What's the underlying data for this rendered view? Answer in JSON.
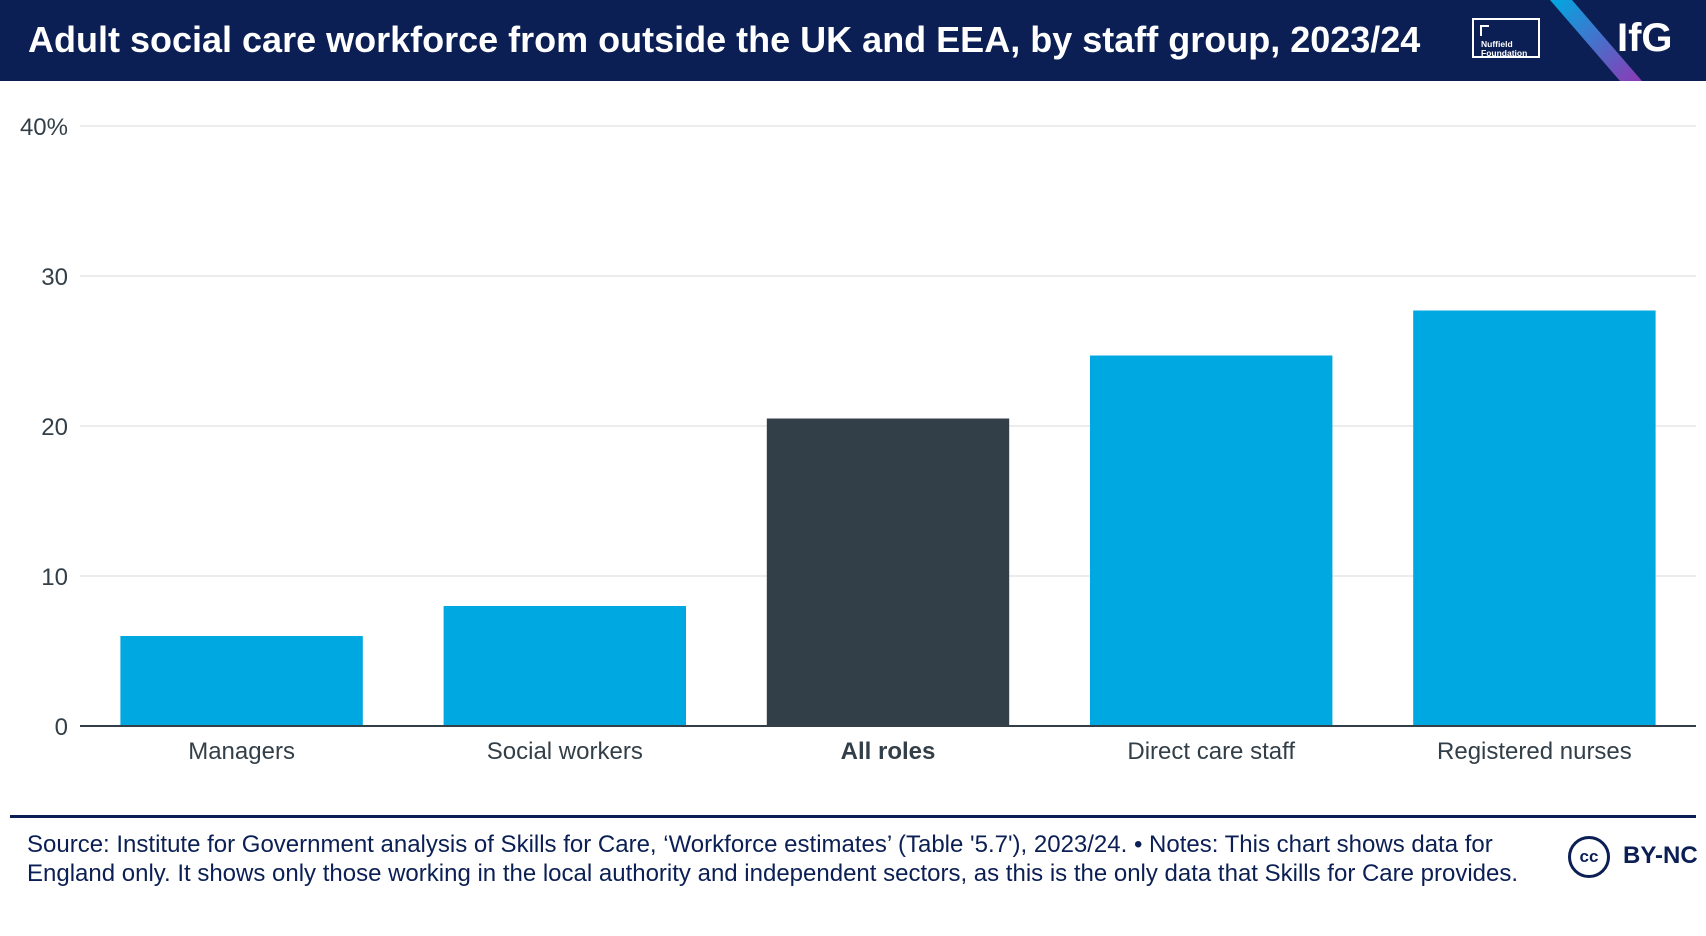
{
  "header": {
    "title": "Adult social care workforce from outside the UK and EEA, by staff group, 2023/24",
    "nuffield_logo_lines": [
      "Nuffield",
      "Foundation"
    ],
    "ifg_logo": "IfG",
    "background_color": "#0b1f54"
  },
  "chart_data": {
    "type": "bar",
    "title": "Adult social care workforce from outside the UK and EEA, by staff group, 2023/24",
    "xlabel": "",
    "ylabel": "",
    "categories": [
      "Managers",
      "Social workers",
      "All roles",
      "Direct care staff",
      "Registered nurses"
    ],
    "values": [
      6,
      8,
      20.5,
      24.7,
      27.7
    ],
    "highlight_category": "All roles",
    "ylim": [
      0,
      40
    ],
    "yticks": [
      0,
      10,
      20,
      30,
      40
    ],
    "ytick_labels": [
      "0",
      "10",
      "20",
      "30",
      "40%"
    ],
    "grid": true,
    "legend": "none",
    "colors": {
      "bar": "#00a8e1",
      "highlight": "#333f48",
      "grid": "#e6e6e6",
      "axis": "#333f48",
      "text": "#333f48"
    }
  },
  "footer": {
    "source_text": "Source: Institute for Government analysis of Skills for Care, ‘Workforce estimates’ (Table '5.7'), 2023/24. • Notes: This chart shows data for England only. It shows only those working in the local authority and independent sectors, as this is the only data that Skills for Care provides.",
    "cc_icon_text": "cc",
    "license": "BY-NC"
  }
}
